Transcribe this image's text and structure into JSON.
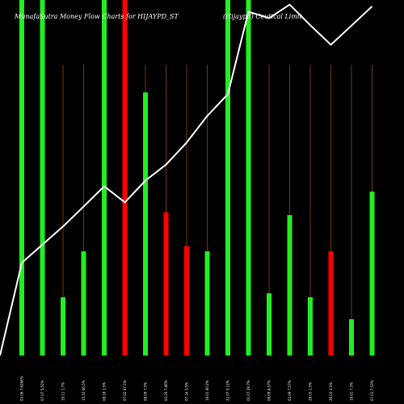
{
  "title_left": "MunafaSutra  Money Flow  Charts for HIJAYPD_ST",
  "title_right": "(Hijaypd) Ceutical Limit",
  "colors": {
    "background": "#000000",
    "up": "#22ee22",
    "down": "#ff0000",
    "gridline": "#8b4a14",
    "line": "#ffffff",
    "text": "#ffffff"
  },
  "chart_data": {
    "type": "bar",
    "title": "MunafaSutra  Money Flow  Charts for HIJAYPD_ST",
    "subtitle": "(Hijaypd) Ceutical Limit",
    "ylim": [
      0,
      100
    ],
    "grid": true,
    "categories": [
      "03.06 7.6266%",
      "07.07 5.52%",
      "19.11 1.7%",
      "15.10 66.5%",
      "08.18 3.5%",
      "07.02 67.1%",
      "08.09 7.5%",
      "03.25 7.86%",
      "07.16 5.5%",
      "19.01 60.2%",
      "22.07 5.12%",
      "01.07 29.7%",
      "08.09 6.57%",
      "02.09 7.57%",
      "28.03 1.5%",
      "26.03 3.5%",
      "19.01 7.3%",
      "07.01 7.53%"
    ],
    "bars": [
      {
        "value": 100,
        "direction": "up"
      },
      {
        "value": 100,
        "direction": "up"
      },
      {
        "value": 16.4,
        "direction": "up"
      },
      {
        "value": 29.3,
        "direction": "up"
      },
      {
        "value": 100,
        "direction": "up"
      },
      {
        "value": 100,
        "direction": "down"
      },
      {
        "value": 74,
        "direction": "up"
      },
      {
        "value": 40.3,
        "direction": "down"
      },
      {
        "value": 30.8,
        "direction": "down"
      },
      {
        "value": 29.3,
        "direction": "up"
      },
      {
        "value": 100,
        "direction": "up"
      },
      {
        "value": 100,
        "direction": "up"
      },
      {
        "value": 17.5,
        "direction": "up"
      },
      {
        "value": 39.5,
        "direction": "up"
      },
      {
        "value": 16.4,
        "direction": "up"
      },
      {
        "value": 29.3,
        "direction": "down"
      },
      {
        "value": 10.2,
        "direction": "up"
      },
      {
        "value": 46.1,
        "direction": "up"
      }
    ],
    "line": [
      0,
      26.1,
      31.2,
      36.3,
      41.9,
      47.6,
      43.1,
      49.2,
      53.7,
      59.9,
      67.4,
      73.5,
      96.7,
      94.9,
      98.7,
      92.9,
      87.4,
      92.8,
      98.2
    ]
  }
}
